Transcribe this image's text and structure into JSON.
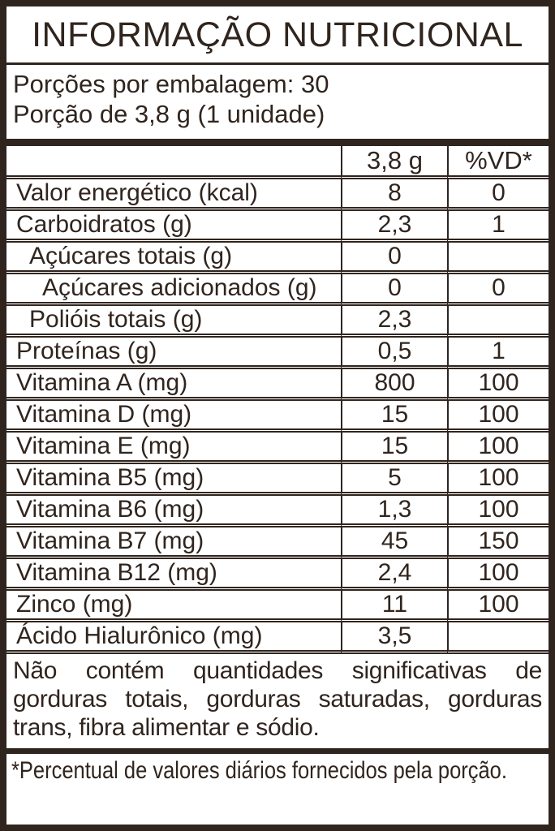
{
  "colors": {
    "ink": "#30251e",
    "background": "#ffffff"
  },
  "header": {
    "title": "INFORMAÇÃO NUTRICIONAL",
    "servings_line": "Porções por embalagem: 30",
    "portion_line": "Porção de 3,8 g (1 unidade)"
  },
  "table": {
    "columns": [
      "",
      "3,8 g",
      "%VD*"
    ],
    "rows": [
      {
        "label": "Valor energético (kcal)",
        "qty": "8",
        "vd": "0",
        "indent": 0
      },
      {
        "label": "Carboidratos (g)",
        "qty": "2,3",
        "vd": "1",
        "indent": 0
      },
      {
        "label": "Açúcares totais (g)",
        "qty": "0",
        "vd": "",
        "indent": 1
      },
      {
        "label": "Açúcares adicionados (g)",
        "qty": "0",
        "vd": "0",
        "indent": 2
      },
      {
        "label": "Polióis totais (g)",
        "qty": "2,3",
        "vd": "",
        "indent": 1
      },
      {
        "label": "Proteínas (g)",
        "qty": "0,5",
        "vd": "1",
        "indent": 0
      },
      {
        "label": "Vitamina A (mg)",
        "qty": "800",
        "vd": "100",
        "indent": 0
      },
      {
        "label": "Vitamina D (mg)",
        "qty": "15",
        "vd": "100",
        "indent": 0
      },
      {
        "label": "Vitamina E (mg)",
        "qty": "15",
        "vd": "100",
        "indent": 0
      },
      {
        "label": "Vitamina B5 (mg)",
        "qty": "5",
        "vd": "100",
        "indent": 0
      },
      {
        "label": "Vitamina B6 (mg)",
        "qty": "1,3",
        "vd": "100",
        "indent": 0
      },
      {
        "label": "Vitamina B7 (mg)",
        "qty": "45",
        "vd": "150",
        "indent": 0
      },
      {
        "label": "Vitamina B12 (mg)",
        "qty": "2,4",
        "vd": "100",
        "indent": 0
      },
      {
        "label": "Zinco (mg)",
        "qty": "11",
        "vd": "100",
        "indent": 0
      },
      {
        "label": "Ácido Hialurônico (mg)",
        "qty": "3,5",
        "vd": "",
        "indent": 0
      }
    ]
  },
  "notes": {
    "no_significant": "Não contém quantidades significativas de gorduras totais, gorduras saturadas, gorduras trans, fibra alimentar e sódio.",
    "footnote": "*Percentual de valores diários fornecidos pela porção."
  }
}
